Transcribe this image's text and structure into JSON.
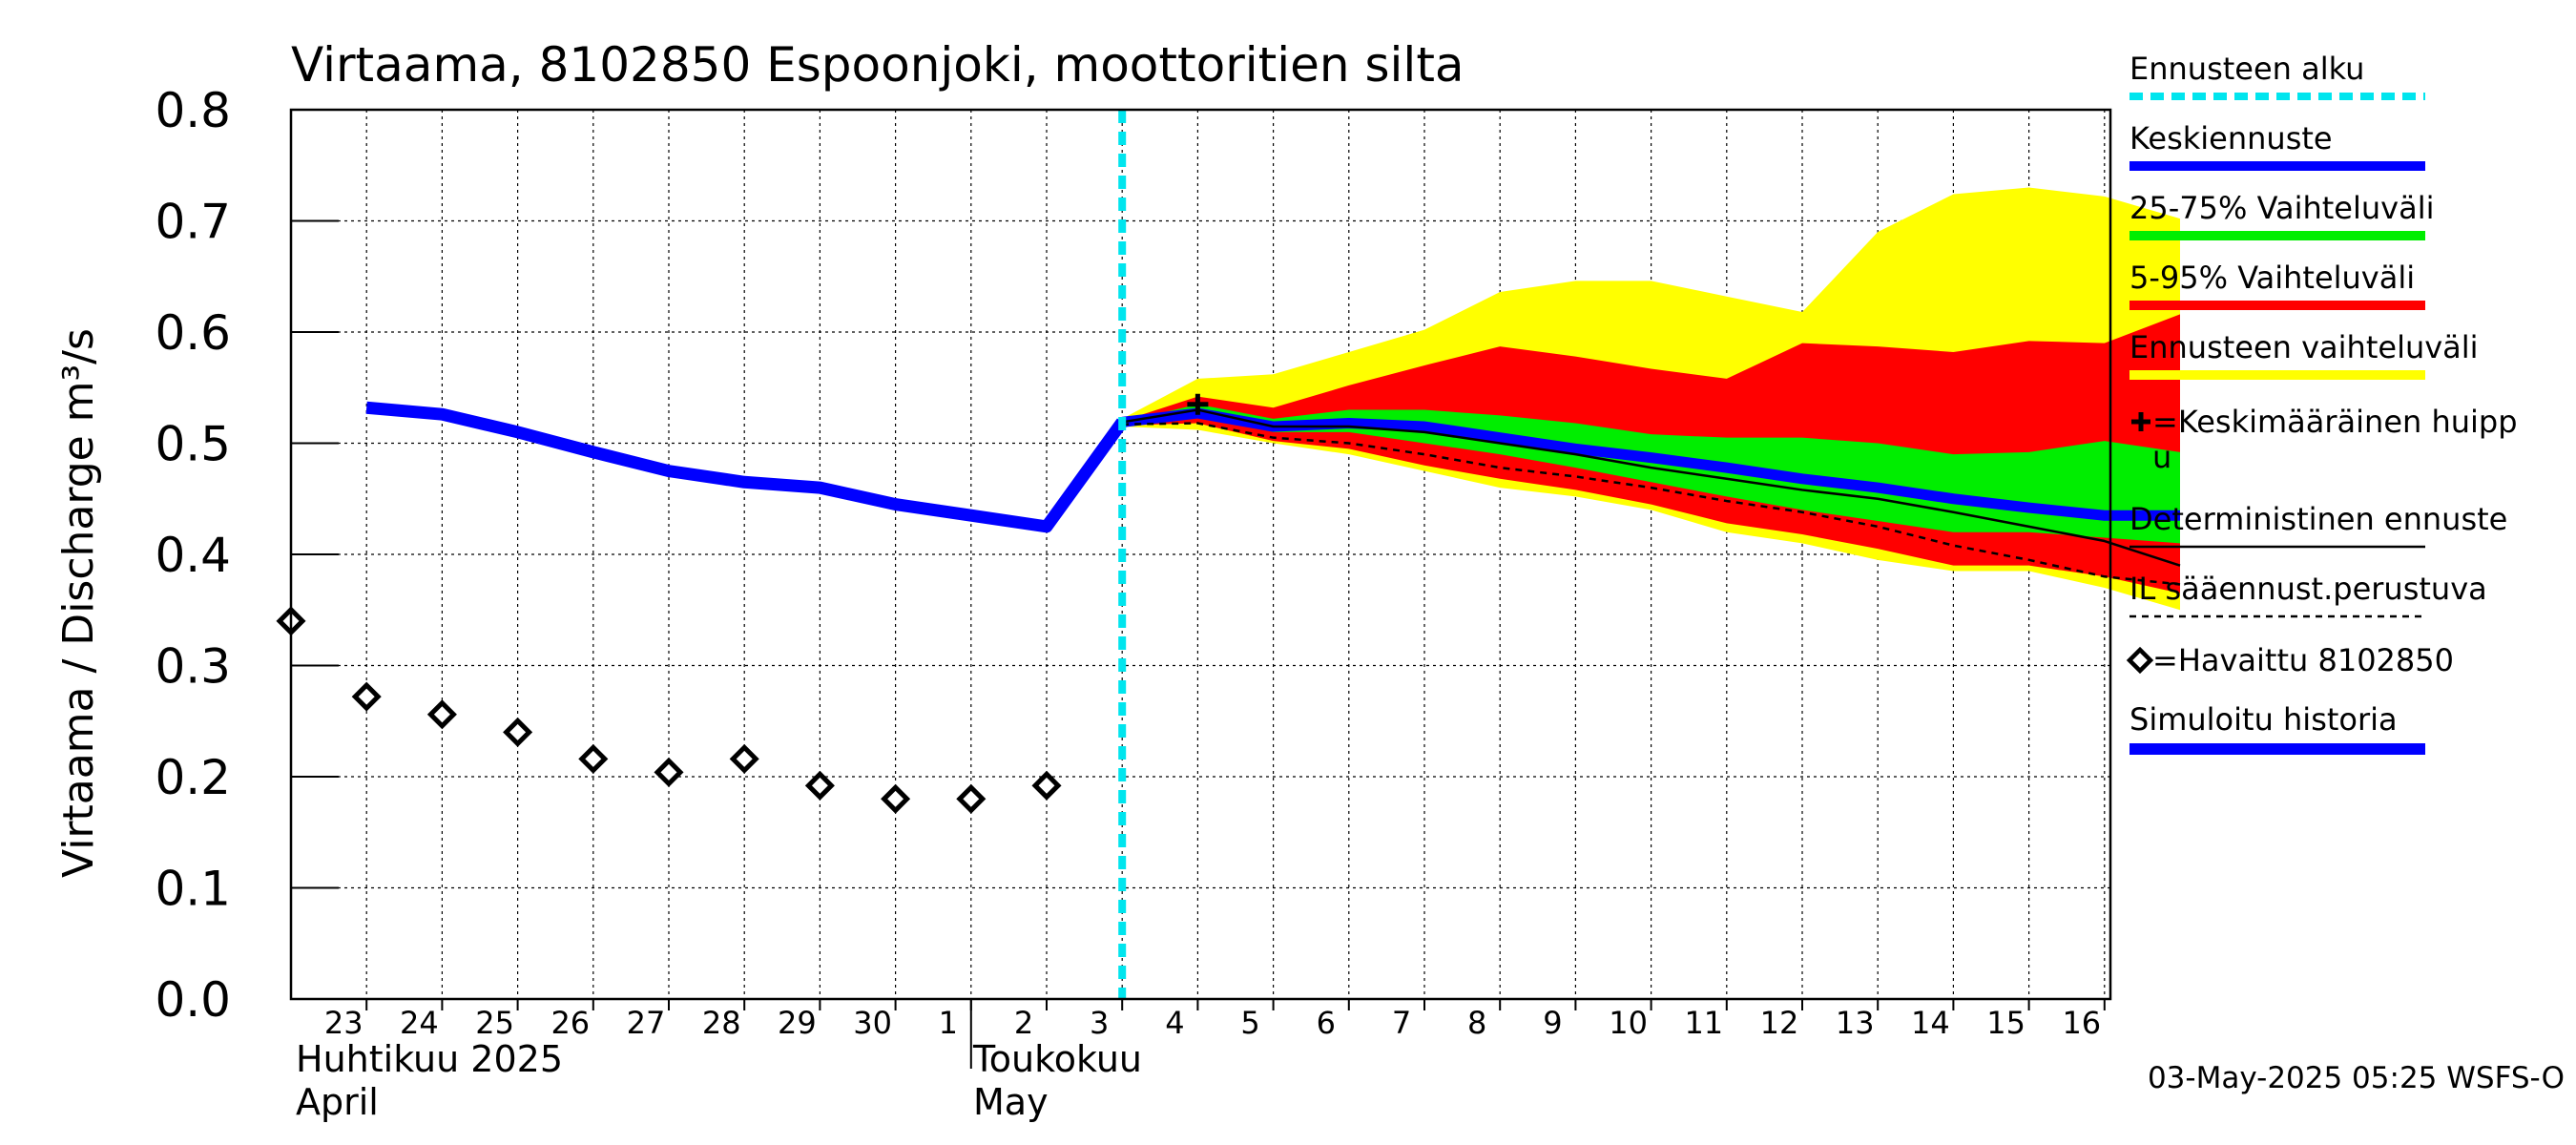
{
  "chart_data": {
    "type": "line",
    "title": "Virtaama, 8102850 Espoonjoki, moottoritien silta",
    "ylabel": "Virtaama / Discharge    m³/s",
    "ylim": [
      0,
      0.8
    ],
    "yticks": [
      "0.0",
      "0.1",
      "0.2",
      "0.3",
      "0.4",
      "0.5",
      "0.6",
      "0.7",
      "0.8"
    ],
    "x_day_labels": [
      "23",
      "24",
      "25",
      "26",
      "27",
      "28",
      "29",
      "30",
      "1",
      "2",
      "3",
      "4",
      "5",
      "6",
      "7",
      "8",
      "9",
      "10",
      "11",
      "12",
      "13",
      "14",
      "15",
      "16"
    ],
    "month_labels": {
      "april_fi": "Huhtikuu  2025",
      "april_en": "April",
      "may_fi": "Toukokuu",
      "may_en": "May"
    },
    "timestamp": "03-May-2025 05:25 WSFS-O",
    "forecast_start": "2025-05-03",
    "legend": [
      "Ennusteen alku",
      "Keskiennuste",
      "25-75% Vaihteluväli",
      "5-95% Vaihteluväli",
      "Ennusteen vaihteluväli",
      "+=Keskimääräinen huippu",
      "Deterministinen ennuste",
      "IL sääennust.perustuva",
      "=Havaittu 8102850",
      "Simuloitu historia"
    ],
    "colors": {
      "forecast_start": "#00e5ee",
      "mean_forecast": "#0000ff",
      "band_25_75": "#00ee00",
      "band_5_95": "#ff0000",
      "band_full": "#ffff00",
      "simulated_history": "#0000ff",
      "observed": "#000000",
      "deterministic": "#000000",
      "il_based": "#000000"
    },
    "series": [
      {
        "name": "Simuloitu historia",
        "x": [
          "2025-04-23",
          "2025-04-24",
          "2025-04-25",
          "2025-04-26",
          "2025-04-27",
          "2025-04-28",
          "2025-04-29",
          "2025-04-30",
          "2025-05-01",
          "2025-05-02",
          "2025-05-03"
        ],
        "values": [
          0.532,
          0.526,
          0.51,
          0.492,
          0.475,
          0.465,
          0.46,
          0.445,
          0.435,
          0.425,
          0.519
        ]
      },
      {
        "name": "Keskiennuste",
        "x": [
          "2025-05-03",
          "2025-05-04",
          "2025-05-05",
          "2025-05-06",
          "2025-05-07",
          "2025-05-08",
          "2025-05-09",
          "2025-05-10",
          "2025-05-11",
          "2025-05-12",
          "2025-05-13",
          "2025-05-14",
          "2025-05-15",
          "2025-05-16",
          "2025-05-17"
        ],
        "values": [
          0.519,
          0.527,
          0.515,
          0.518,
          0.515,
          0.505,
          0.495,
          0.487,
          0.478,
          0.468,
          0.46,
          0.45,
          0.442,
          0.435,
          0.435
        ]
      },
      {
        "name": "Deterministinen ennuste",
        "x": [
          "2025-05-03",
          "2025-05-04",
          "2025-05-05",
          "2025-05-06",
          "2025-05-07",
          "2025-05-08",
          "2025-05-09",
          "2025-05-10",
          "2025-05-11",
          "2025-05-12",
          "2025-05-13",
          "2025-05-14",
          "2025-05-15",
          "2025-05-16",
          "2025-05-17"
        ],
        "values": [
          0.519,
          0.53,
          0.515,
          0.515,
          0.51,
          0.5,
          0.49,
          0.478,
          0.468,
          0.458,
          0.45,
          0.438,
          0.425,
          0.412,
          0.39
        ]
      },
      {
        "name": "IL sääennust.perustuva",
        "x": [
          "2025-05-03",
          "2025-05-04",
          "2025-05-05",
          "2025-05-06",
          "2025-05-07",
          "2025-05-08",
          "2025-05-09",
          "2025-05-10",
          "2025-05-11",
          "2025-05-12",
          "2025-05-13",
          "2025-05-14",
          "2025-05-15",
          "2025-05-16",
          "2025-05-17"
        ],
        "values": [
          0.517,
          0.518,
          0.505,
          0.5,
          0.49,
          0.478,
          0.47,
          0.46,
          0.448,
          0.438,
          0.425,
          0.408,
          0.395,
          0.38,
          0.373
        ]
      },
      {
        "name": "Havaittu 8102850",
        "x": [
          "2025-04-22",
          "2025-04-23",
          "2025-04-24",
          "2025-04-25",
          "2025-04-26",
          "2025-04-27",
          "2025-04-28",
          "2025-04-29",
          "2025-04-30",
          "2025-05-01",
          "2025-05-02"
        ],
        "values": [
          0.34,
          0.272,
          0.256,
          0.24,
          0.216,
          0.204,
          0.216,
          0.192,
          0.18,
          0.18,
          0.192
        ]
      }
    ],
    "bands": {
      "x": [
        "2025-05-03",
        "2025-05-04",
        "2025-05-05",
        "2025-05-06",
        "2025-05-07",
        "2025-05-08",
        "2025-05-09",
        "2025-05-10",
        "2025-05-11",
        "2025-05-12",
        "2025-05-13",
        "2025-05-14",
        "2025-05-15",
        "2025-05-16",
        "2025-05-17"
      ],
      "full_low": [
        0.515,
        0.512,
        0.5,
        0.49,
        0.475,
        0.46,
        0.452,
        0.44,
        0.42,
        0.41,
        0.395,
        0.385,
        0.385,
        0.37,
        0.35
      ],
      "full_high": [
        0.522,
        0.558,
        0.562,
        0.582,
        0.602,
        0.636,
        0.646,
        0.646,
        0.632,
        0.618,
        0.69,
        0.724,
        0.73,
        0.722,
        0.702
      ],
      "p5": [
        0.516,
        0.518,
        0.502,
        0.495,
        0.48,
        0.468,
        0.458,
        0.445,
        0.428,
        0.418,
        0.405,
        0.39,
        0.39,
        0.38,
        0.365
      ],
      "p95": [
        0.52,
        0.542,
        0.532,
        0.552,
        0.57,
        0.587,
        0.578,
        0.567,
        0.558,
        0.59,
        0.587,
        0.582,
        0.592,
        0.59,
        0.616
      ],
      "p25": [
        0.518,
        0.525,
        0.51,
        0.51,
        0.5,
        0.49,
        0.478,
        0.465,
        0.452,
        0.44,
        0.43,
        0.42,
        0.42,
        0.415,
        0.41
      ],
      "p75": [
        0.519,
        0.535,
        0.522,
        0.53,
        0.53,
        0.525,
        0.518,
        0.508,
        0.505,
        0.505,
        0.5,
        0.49,
        0.492,
        0.502,
        0.492
      ]
    },
    "mean_peak": {
      "x": "2025-05-04",
      "value": 0.535
    }
  }
}
